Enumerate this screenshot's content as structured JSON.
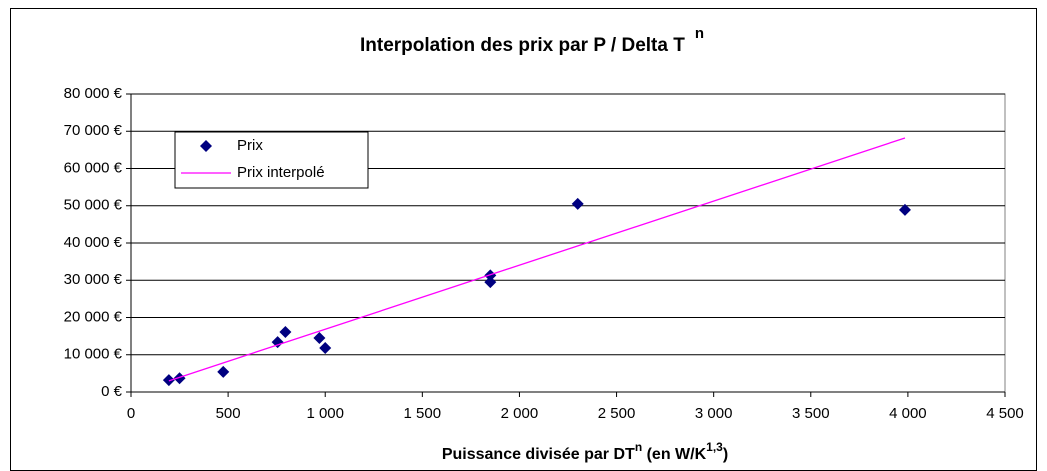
{
  "chart_data": {
    "type": "scatter",
    "title": "Interpolation des prix par P / Delta T",
    "title_superscript": "n",
    "x_label_parts": [
      "Puissance divisée par DT",
      "n",
      " (en W/K",
      "1,3",
      ")"
    ],
    "xlim": [
      0,
      4500
    ],
    "xticks": [
      0,
      500,
      {
        "value": 1000,
        "label": "1 000"
      },
      {
        "value": 1500,
        "label": "1 500"
      },
      {
        "value": 2000,
        "label": "2 000"
      },
      {
        "value": 2500,
        "label": "2 500"
      },
      {
        "value": 3000,
        "label": "3 000"
      },
      {
        "value": 3500,
        "label": "3 500"
      },
      {
        "value": 4000,
        "label": "4 000"
      },
      {
        "value": 4500,
        "label": "4 500"
      }
    ],
    "ylim": [
      0,
      80000
    ],
    "yticks": [
      {
        "value": 0,
        "label": "0 €"
      },
      {
        "value": 10000,
        "label": "10 000 €"
      },
      {
        "value": 20000,
        "label": "20 000 €"
      },
      {
        "value": 30000,
        "label": "30 000 €"
      },
      {
        "value": 40000,
        "label": "40 000 €"
      },
      {
        "value": 50000,
        "label": "50 000 €"
      },
      {
        "value": 60000,
        "label": "60 000 €"
      },
      {
        "value": 70000,
        "label": "70 000 €"
      },
      {
        "value": 80000,
        "label": "80 000 €"
      }
    ],
    "grid": true,
    "legend": "upper left",
    "series": [
      {
        "name": "Prix",
        "kind": "marker",
        "color": "#000080",
        "x": [
          195,
          250,
          475,
          755,
          795,
          970,
          1000,
          1850,
          1850,
          2300,
          3985
        ],
        "values": [
          3200,
          3700,
          5400,
          13400,
          16100,
          14500,
          11800,
          31300,
          29500,
          50500,
          48900
        ]
      },
      {
        "name": "Prix interpolé",
        "kind": "line",
        "color": "#ff00ff",
        "x": [
          195,
          3985
        ],
        "values": [
          3000,
          68200
        ]
      }
    ]
  }
}
